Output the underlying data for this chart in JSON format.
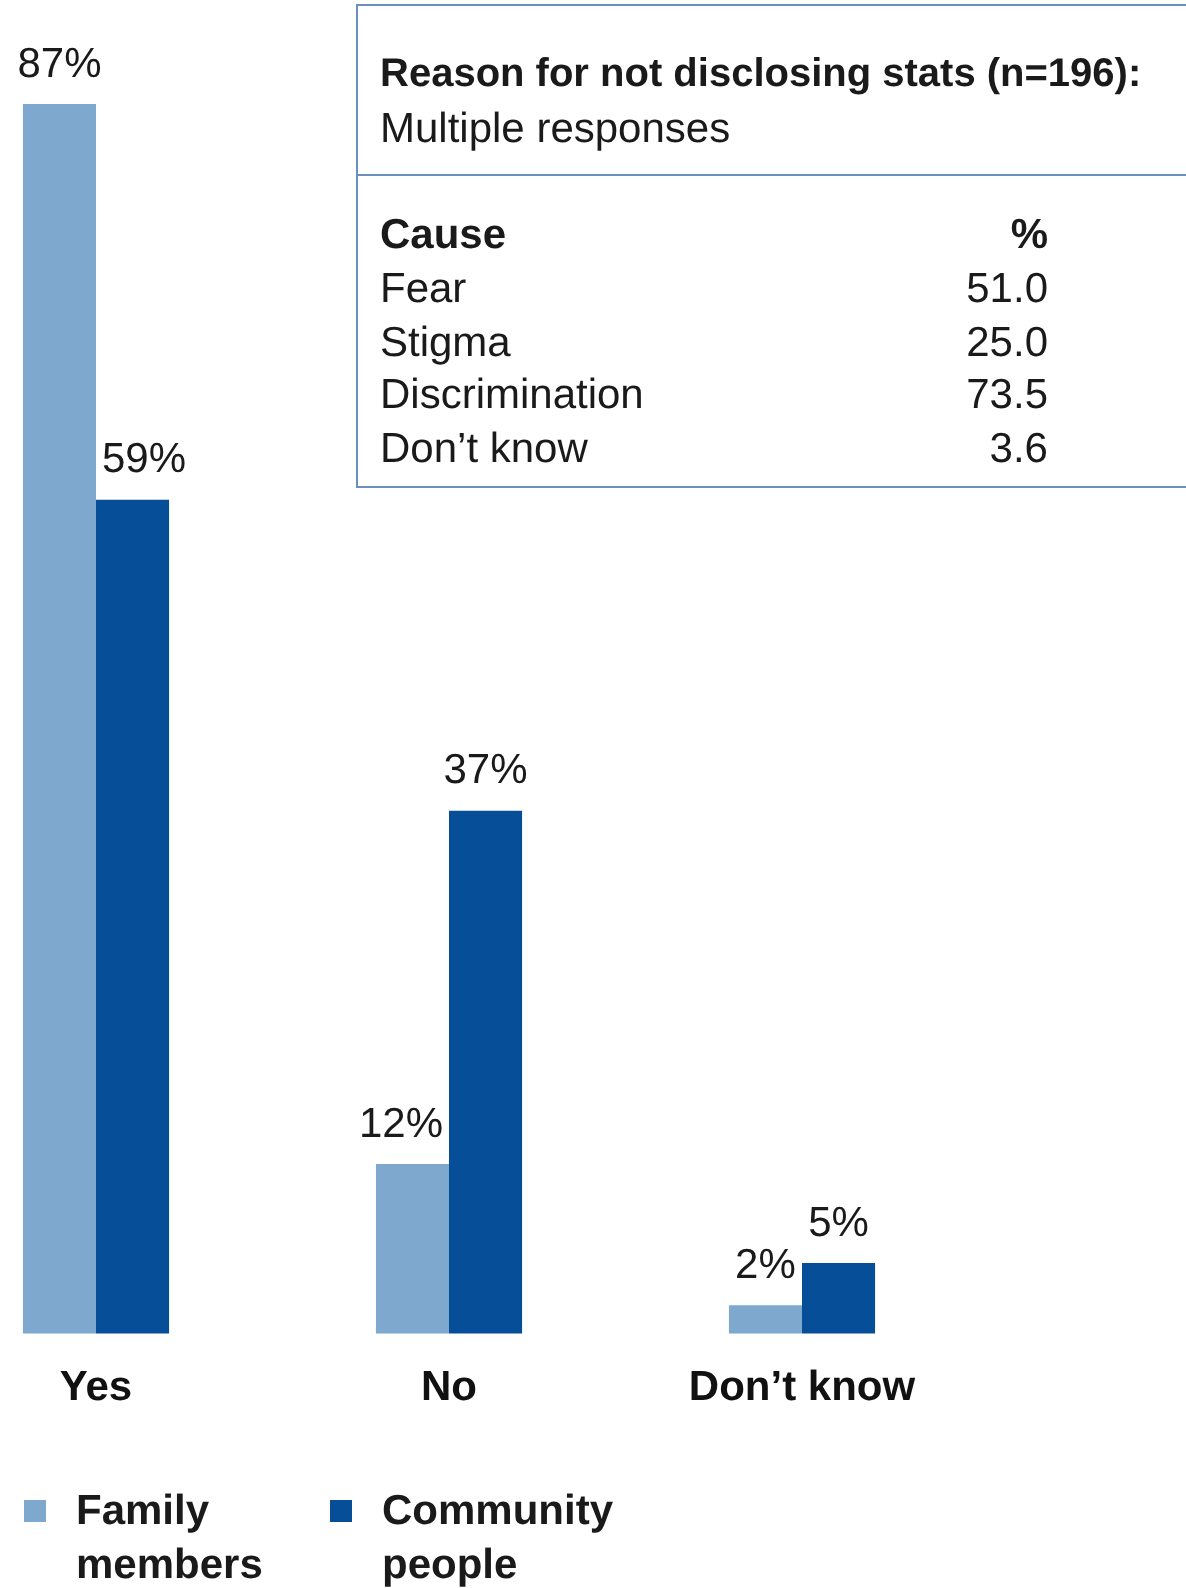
{
  "chart_data": [
    {
      "type": "bar",
      "categories": [
        "Yes",
        "No",
        "Don’t know"
      ],
      "series": [
        {
          "name": "Family members",
          "color": "#7fa8ce",
          "values": [
            87,
            12,
            2
          ],
          "value_labels": [
            "87%",
            "12%",
            "2%"
          ]
        },
        {
          "name": "Community people",
          "color": "#064f98",
          "values": [
            59,
            37,
            5
          ],
          "value_labels": [
            "59%",
            "37%",
            "5%"
          ]
        }
      ],
      "legend": "bottom left",
      "tick_labels": "x"
    },
    {
      "type": "other",
      "title": "Reason for not disclosing stats (n=196):",
      "subtitle": "Multiple responses",
      "xlabel": "Cause",
      "ylabel": "%",
      "categories": [
        "Fear",
        "Stigma",
        "Discrimination",
        "Don’t know"
      ],
      "values": [
        51.0,
        25.0,
        73.5,
        3.6
      ],
      "value_labels": [
        "51.0",
        "25.0",
        "73.5",
        "3.6"
      ]
    }
  ]
}
